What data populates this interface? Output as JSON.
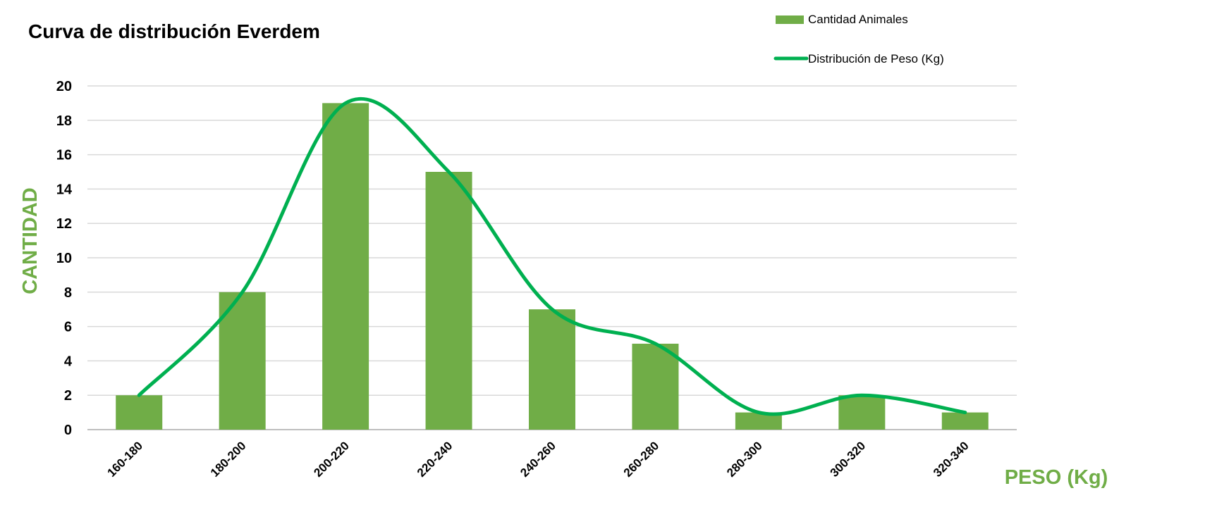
{
  "chart_data": {
    "type": "bar",
    "title": "Curva de distribución Everdem",
    "xlabel": "PESO (Kg)",
    "ylabel": "CANTIDAD",
    "ylim": [
      0,
      20
    ],
    "yticks": [
      0,
      2,
      4,
      6,
      8,
      10,
      12,
      14,
      16,
      18,
      20
    ],
    "grid": true,
    "legend_position": "top-right",
    "categories": [
      "160-180",
      "180-200",
      "200-220",
      "220-240",
      "240-260",
      "260-280",
      "280-300",
      "300-320",
      "320-340"
    ],
    "series": [
      {
        "name": "Cantidad Animales",
        "kind": "bar",
        "color": "#70AD47",
        "values": [
          2,
          8,
          19,
          15,
          7,
          5,
          1,
          2,
          1
        ]
      },
      {
        "name": "Distribución de Peso (Kg)",
        "kind": "line",
        "smooth": true,
        "color": "#00B050",
        "values": [
          2,
          8,
          19,
          15,
          7,
          5,
          1,
          2,
          1
        ]
      }
    ]
  }
}
